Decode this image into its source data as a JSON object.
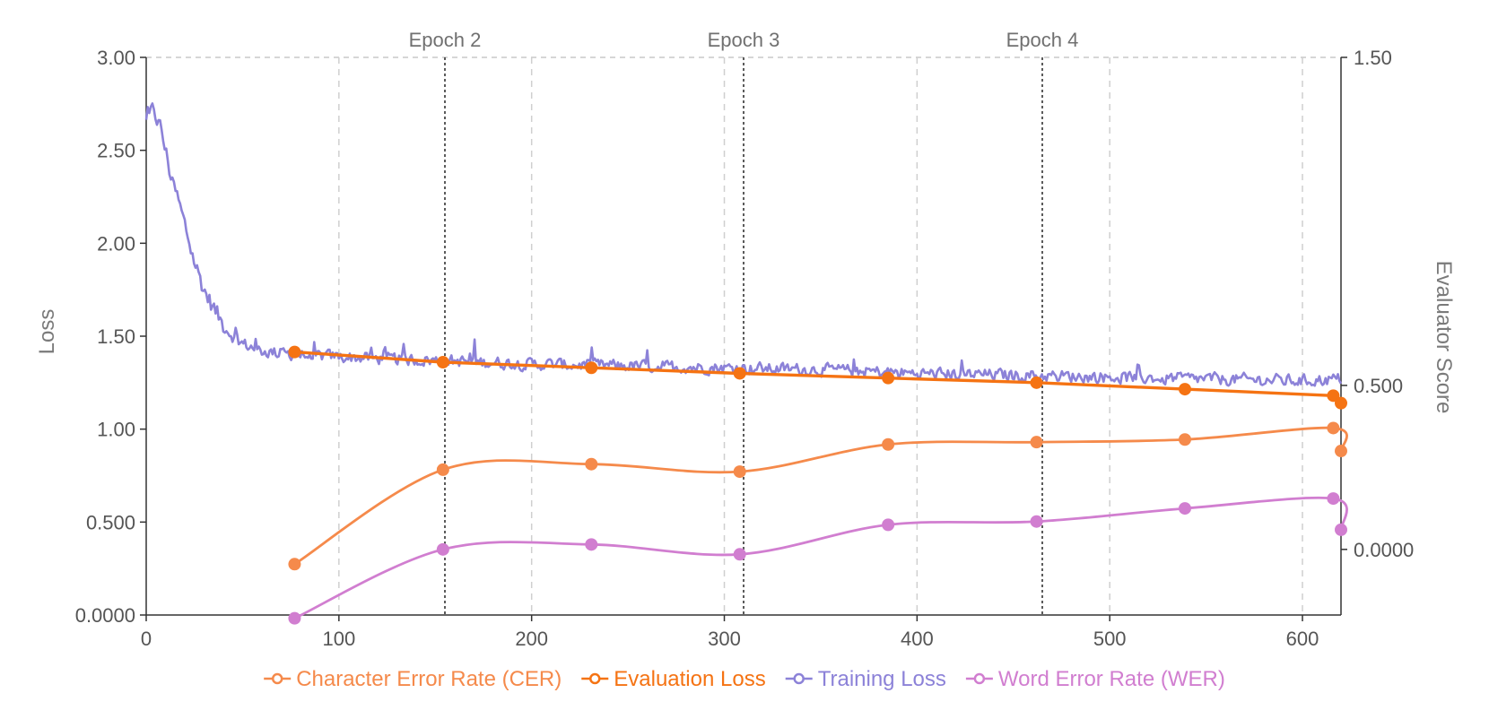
{
  "chart_data": {
    "type": "line",
    "title": "",
    "xlabel": "",
    "ylabel": "Loss",
    "y2label": "Evaluator Score",
    "xlim": [
      0,
      620
    ],
    "ylim": [
      0,
      3
    ],
    "y2lim": [
      -0.2,
      1.5
    ],
    "x_ticks": [
      0,
      100,
      200,
      300,
      400,
      500,
      600
    ],
    "y_ticks": [
      {
        "value": 0,
        "label": "0.0000"
      },
      {
        "value": 0.5,
        "label": "0.500"
      },
      {
        "value": 1.0,
        "label": "1.00"
      },
      {
        "value": 1.5,
        "label": "1.50"
      },
      {
        "value": 2.0,
        "label": "2.00"
      },
      {
        "value": 2.5,
        "label": "2.50"
      },
      {
        "value": 3.0,
        "label": "3.00"
      }
    ],
    "y2_ticks": [
      {
        "value": 0.0,
        "label": "0.0000"
      },
      {
        "value": 0.5,
        "label": "0.500"
      },
      {
        "value": 1.5,
        "label": "1.50"
      }
    ],
    "x_gridlines": [
      100,
      200,
      300,
      400,
      500,
      600
    ],
    "epochs": [
      {
        "x": 155,
        "label": "Epoch 2"
      },
      {
        "x": 310,
        "label": "Epoch 3"
      },
      {
        "x": 465,
        "label": "Epoch 4"
      }
    ],
    "legend_position": "bottom",
    "series": [
      {
        "name": "Character Error Rate (CER)",
        "axis": "right",
        "color": "#f58a4b",
        "smooth": true,
        "x": [
          77,
          154,
          231,
          308,
          385,
          462,
          539,
          616,
          620
        ],
        "values": [
          -0.045,
          0.243,
          0.26,
          0.237,
          0.32,
          0.327,
          0.335,
          0.37,
          0.3
        ]
      },
      {
        "name": "Evaluation Loss",
        "axis": "left",
        "color": "#f57313",
        "smooth": false,
        "x": [
          77,
          154,
          231,
          308,
          385,
          462,
          539,
          616,
          620
        ],
        "values": [
          1.415,
          1.36,
          1.33,
          1.3,
          1.275,
          1.25,
          1.215,
          1.18,
          1.14
        ]
      },
      {
        "name": "Training Loss",
        "axis": "left",
        "color": "#8c82d8",
        "smooth": false,
        "x": [
          0,
          4,
          8,
          12,
          16,
          20,
          25,
          30,
          35,
          40,
          45,
          50,
          55,
          60,
          70,
          80,
          100,
          120,
          150,
          200,
          250,
          300,
          350,
          400,
          450,
          500,
          550,
          600,
          620
        ],
        "values": [
          2.65,
          2.72,
          2.6,
          2.4,
          2.25,
          2.1,
          1.9,
          1.75,
          1.65,
          1.56,
          1.5,
          1.46,
          1.44,
          1.42,
          1.41,
          1.4,
          1.39,
          1.38,
          1.37,
          1.35,
          1.34,
          1.33,
          1.32,
          1.3,
          1.29,
          1.28,
          1.27,
          1.26,
          1.27
        ],
        "noise": 0.045
      },
      {
        "name": "Word Error Rate (WER)",
        "axis": "right",
        "color": "#d17ed0",
        "smooth": true,
        "x": [
          77,
          154,
          231,
          308,
          385,
          462,
          539,
          616,
          620
        ],
        "values": [
          -0.21,
          0.0,
          0.015,
          -0.015,
          0.075,
          0.085,
          0.125,
          0.155,
          0.06
        ]
      }
    ]
  }
}
